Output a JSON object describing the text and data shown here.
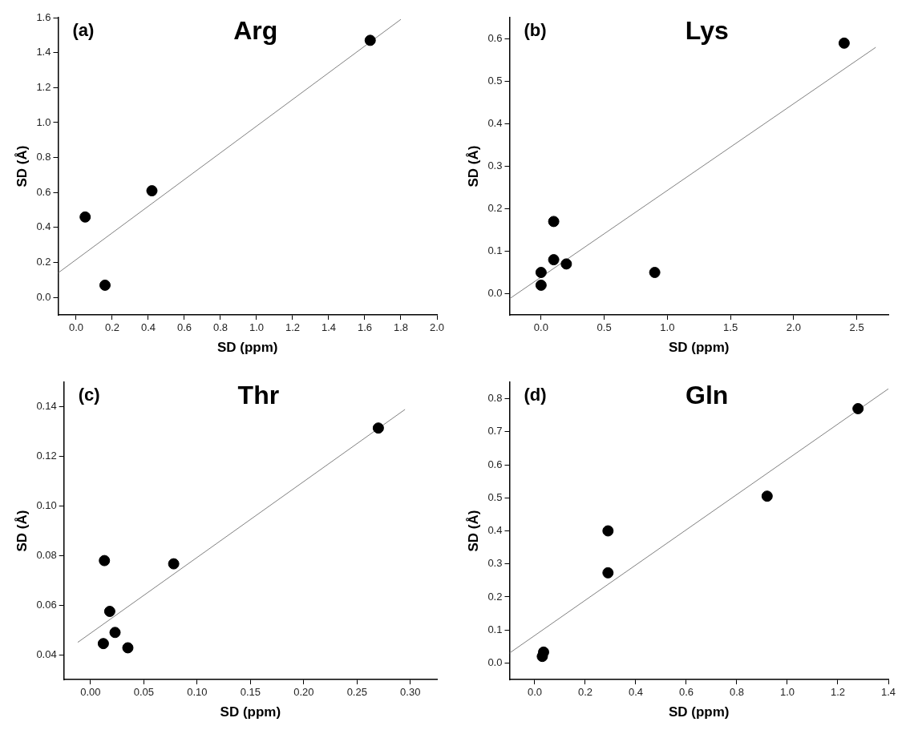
{
  "chart_data": [
    {
      "type": "scatter",
      "title": "Arg",
      "annotations": [
        "(a)"
      ],
      "xlabel": "SD (ppm)",
      "ylabel": "SD (Å)",
      "xlim": [
        -0.1,
        2.0
      ],
      "ylim": [
        -0.1,
        1.6
      ],
      "xticks": [
        {
          "value": 0,
          "label": "0.0"
        },
        0.2,
        0.4,
        0.6,
        0.8,
        {
          "value": 1,
          "label": "1.0"
        },
        1.2,
        1.4,
        1.6,
        1.8,
        {
          "value": 2,
          "label": "2.0"
        }
      ],
      "yticks": [
        {
          "value": 0,
          "label": "0.0"
        },
        0.2,
        0.4,
        0.6,
        0.8,
        {
          "value": 1,
          "label": "1.0"
        },
        1.2,
        1.4,
        1.6
      ],
      "grid": false,
      "legend": false,
      "marker": "circle",
      "series": [
        {
          "color": "#000000",
          "x": [
            0.05,
            0.16,
            0.42,
            1.63
          ],
          "values": [
            0.46,
            0.07,
            0.61,
            1.47
          ]
        },
        {
          "type": "line",
          "color": "#808080",
          "marker": "none",
          "x": [
            -0.1,
            1.8
          ],
          "values": [
            0.14,
            1.59
          ]
        }
      ]
    },
    {
      "type": "scatter",
      "title": "Lys",
      "annotations": [
        "(b)"
      ],
      "xlabel": "SD (ppm)",
      "ylabel": "SD (Å)",
      "xlim": [
        -0.25,
        2.75
      ],
      "ylim": [
        -0.05,
        0.65
      ],
      "xticks": [
        {
          "value": 0,
          "label": "0.0"
        },
        0.5,
        {
          "value": 1,
          "label": "1.0"
        },
        1.5,
        {
          "value": 2,
          "label": "2.0"
        },
        2.5
      ],
      "yticks": [
        {
          "value": 0,
          "label": "0.0"
        },
        0.1,
        0.2,
        0.3,
        0.4,
        0.5,
        0.6
      ],
      "grid": false,
      "legend": false,
      "marker": "circle",
      "series": [
        {
          "color": "#000000",
          "x": [
            0,
            0,
            0.1,
            0.1,
            0.2,
            0.9,
            2.4
          ],
          "values": [
            0.05,
            0.02,
            0.17,
            0.08,
            0.07,
            0.05,
            0.59
          ]
        },
        {
          "type": "line",
          "color": "#808080",
          "marker": "none",
          "x": [
            -0.25,
            2.65
          ],
          "values": [
            -0.012,
            0.58
          ]
        }
      ]
    },
    {
      "type": "scatter",
      "title": "Thr",
      "annotations": [
        "(c)"
      ],
      "xlabel": "SD (ppm)",
      "ylabel": "SD (Å)",
      "xlim": [
        -0.025,
        0.325
      ],
      "ylim": [
        0.03,
        0.15
      ],
      "xticks": [
        {
          "value": 0,
          "label": "0.00"
        },
        0.05,
        {
          "value": 0.1,
          "label": "0.10"
        },
        0.15,
        {
          "value": 0.2,
          "label": "0.20"
        },
        0.25,
        {
          "value": 0.3,
          "label": "0.30"
        }
      ],
      "yticks": [
        0.04,
        0.06,
        0.08,
        {
          "value": 0.1,
          "label": "0.10"
        },
        0.12,
        0.14
      ],
      "grid": false,
      "legend": false,
      "marker": "circle",
      "series": [
        {
          "color": "#000000",
          "x": [
            0.013,
            0.078,
            0.018,
            0.023,
            0.012,
            0.035,
            0.27
          ],
          "values": [
            0.078,
            0.0767,
            0.0575,
            0.049,
            0.0445,
            0.0428,
            0.1315
          ]
        },
        {
          "type": "line",
          "color": "#808080",
          "marker": "none",
          "x": [
            -0.012,
            0.295
          ],
          "values": [
            0.045,
            0.139
          ]
        }
      ]
    },
    {
      "type": "scatter",
      "title": "Gln",
      "annotations": [
        "(d)"
      ],
      "xlabel": "SD (ppm)",
      "ylabel": "SD (Å)",
      "xlim": [
        -0.1,
        1.4
      ],
      "ylim": [
        -0.05,
        0.85
      ],
      "xticks": [
        {
          "value": 0,
          "label": "0.0"
        },
        0.2,
        0.4,
        0.6,
        0.8,
        {
          "value": 1,
          "label": "1.0"
        },
        1.2,
        1.4
      ],
      "yticks": [
        {
          "value": 0,
          "label": "0.0"
        },
        0.1,
        0.2,
        0.3,
        0.4,
        0.5,
        0.6,
        0.7,
        0.8
      ],
      "grid": false,
      "legend": false,
      "marker": "circle",
      "series": [
        {
          "color": "#000000",
          "x": [
            0.03,
            0.035,
            0.29,
            0.29,
            0.92,
            1.28
          ],
          "values": [
            0.02,
            0.033,
            0.4,
            0.273,
            0.505,
            0.77
          ]
        },
        {
          "type": "line",
          "color": "#808080",
          "marker": "none",
          "x": [
            -0.1,
            1.4
          ],
          "values": [
            0.03,
            0.83
          ]
        }
      ]
    }
  ]
}
